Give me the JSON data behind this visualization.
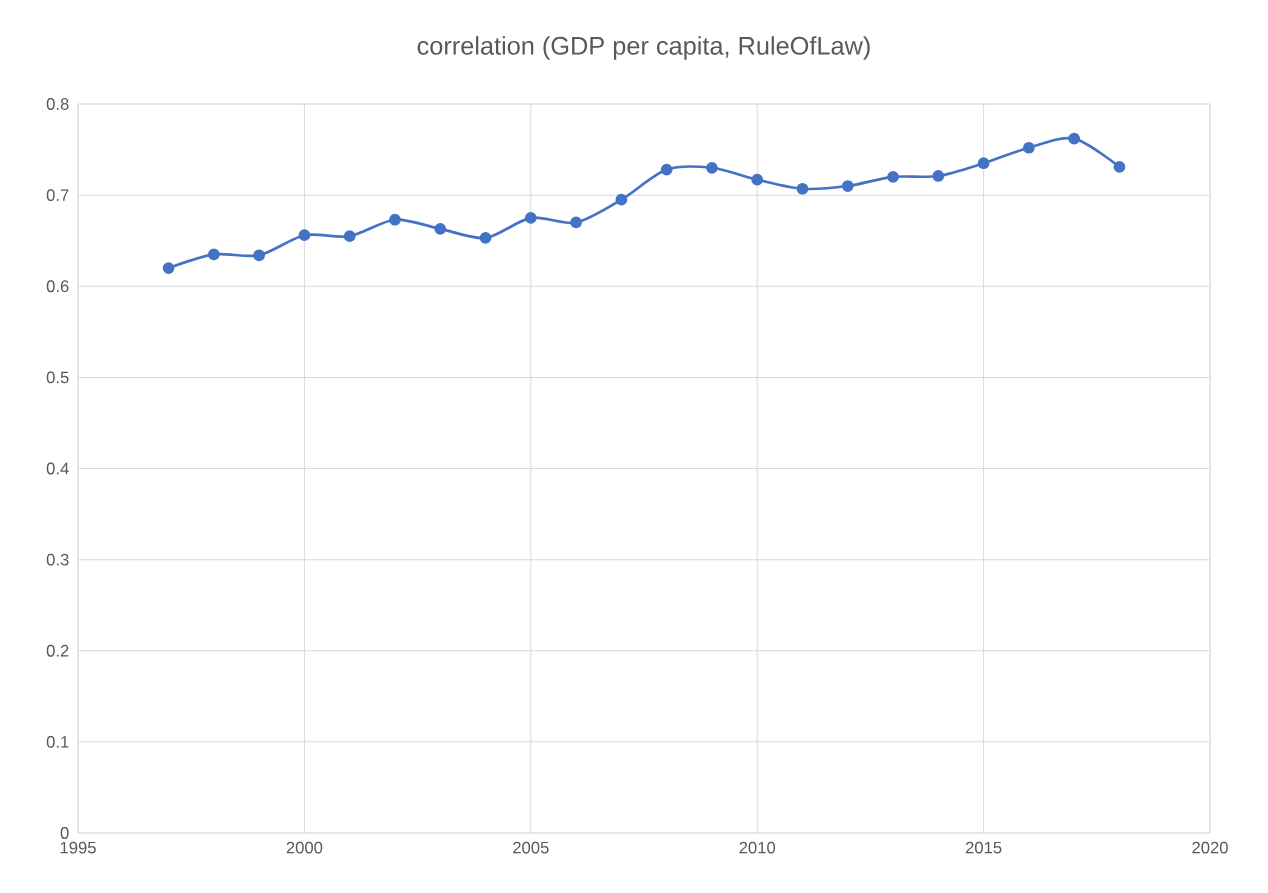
{
  "chart_data": {
    "type": "line",
    "title": "correlation (GDP per capita, RuleOfLaw)",
    "x": [
      1997,
      1998,
      1999,
      2000,
      2001,
      2002,
      2003,
      2004,
      2005,
      2006,
      2007,
      2008,
      2009,
      2010,
      2011,
      2012,
      2013,
      2014,
      2015,
      2016,
      2017,
      2018
    ],
    "values": [
      0.62,
      0.635,
      0.634,
      0.656,
      0.655,
      0.673,
      0.663,
      0.653,
      0.675,
      0.67,
      0.695,
      0.728,
      0.73,
      0.717,
      0.707,
      0.71,
      0.72,
      0.721,
      0.735,
      0.752,
      0.762,
      0.731
    ],
    "color": "#4472c4",
    "marker": "circle",
    "line_style": "solid",
    "grid": true,
    "xlim": [
      1995,
      2020
    ],
    "xticks": [
      1995,
      2000,
      2005,
      2010,
      2015,
      2020
    ],
    "ylim": [
      0,
      0.8
    ],
    "yticks": [
      0,
      0.1,
      0.2,
      0.3,
      0.4,
      0.5,
      0.6,
      0.7,
      0.8
    ]
  }
}
